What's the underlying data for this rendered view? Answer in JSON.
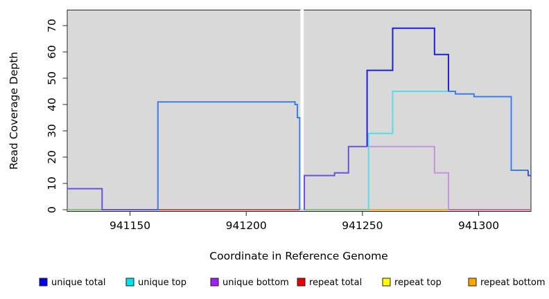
{
  "chart_data": {
    "type": "step-line",
    "title": "",
    "xlabel": "Coordinate in Reference Genome",
    "ylabel": "Read Coverage Depth",
    "xlim": [
      941123,
      941322.5
    ],
    "ylim": [
      0,
      76
    ],
    "x_ticks": [
      941150,
      941200,
      941250,
      941300
    ],
    "y_ticks": [
      0,
      10,
      20,
      30,
      40,
      50,
      60,
      70
    ],
    "grid": "off",
    "plot_bg": "#d9d9d9",
    "gap_region": {
      "from": 941223.3,
      "to": 941224.75,
      "color": "#ffffff"
    },
    "legend_position": "bottom",
    "legend": [
      {
        "label": "unique total",
        "color": "#0000e8"
      },
      {
        "label": "unique top",
        "color": "#00e0ee"
      },
      {
        "label": "unique bottom",
        "color": "#a020f0"
      },
      {
        "label": "repeat total",
        "color": "#ee0000"
      },
      {
        "label": "repeat top",
        "color": "#ffff00"
      },
      {
        "label": "repeat bottom",
        "color": "#ffa500"
      }
    ],
    "series": [
      {
        "name": "unique total",
        "steps": [
          [
            941123,
            8
          ],
          [
            941138,
            0
          ],
          [
            941162,
            41
          ],
          [
            941221,
            40
          ],
          [
            941222,
            35
          ],
          [
            941223,
            0
          ],
          [
            941225,
            13
          ],
          [
            941238,
            14
          ],
          [
            941244,
            24
          ],
          [
            941252,
            53
          ],
          [
            941263,
            69
          ],
          [
            941281,
            59
          ],
          [
            941287,
            45
          ],
          [
            941290,
            44
          ],
          [
            941298,
            43
          ],
          [
            941314,
            15
          ],
          [
            941321,
            13
          ],
          [
            941322,
            13
          ]
        ]
      },
      {
        "name": "unique top",
        "steps": [
          [
            941123,
            0
          ],
          [
            941162,
            41
          ],
          [
            941221,
            40
          ],
          [
            941222,
            35
          ],
          [
            941223,
            0
          ],
          [
            941252,
            29
          ],
          [
            941263,
            45
          ],
          [
            941290,
            44
          ],
          [
            941298,
            43
          ],
          [
            941314,
            15
          ],
          [
            941321,
            13
          ],
          [
            941322,
            13
          ]
        ]
      },
      {
        "name": "unique bottom",
        "steps": [
          [
            941123,
            8
          ],
          [
            941138,
            0
          ],
          [
            941225,
            13
          ],
          [
            941238,
            14
          ],
          [
            941244,
            24
          ],
          [
            941281,
            14
          ],
          [
            941287,
            0
          ],
          [
            941322,
            0
          ]
        ]
      },
      {
        "name": "repeat total",
        "steps": [
          [
            941123,
            0
          ],
          [
            941322,
            0
          ]
        ]
      },
      {
        "name": "repeat top",
        "steps": [
          [
            941123,
            0
          ],
          [
            941322,
            0
          ]
        ]
      },
      {
        "name": "repeat bottom",
        "steps": [
          [
            941123,
            0
          ],
          [
            941322,
            0
          ]
        ]
      }
    ],
    "rendered_segments": [
      {
        "name": "baseline-green-left",
        "color": "#7ec87e",
        "points": [
          [
            941123,
            0
          ],
          [
            941138,
            0
          ]
        ]
      },
      {
        "name": "baseline-crimson",
        "color": "#d24a52",
        "points": [
          [
            941162,
            0
          ],
          [
            941223,
            0
          ]
        ]
      },
      {
        "name": "baseline-green-right",
        "color": "#7ec87e",
        "points": [
          [
            941224.8,
            0
          ],
          [
            941252,
            0
          ]
        ]
      },
      {
        "name": "baseline-orange",
        "color": "#ffa513",
        "points": [
          [
            941252,
            0
          ],
          [
            941287,
            0
          ]
        ]
      },
      {
        "name": "baseline-rose",
        "color": "#df6397",
        "points": [
          [
            941287,
            0
          ],
          [
            941322.5,
            0
          ]
        ]
      },
      {
        "name": "cyan-top-line",
        "color": "#4fdfe8",
        "points": [
          [
            941252.6,
            0
          ],
          [
            941252.6,
            29
          ],
          [
            941263,
            29
          ],
          [
            941263,
            45
          ],
          [
            941287,
            45
          ]
        ]
      },
      {
        "name": "lightpurple-bottom-line",
        "color": "#c893dd",
        "points": [
          [
            941252,
            24
          ],
          [
            941281,
            24
          ],
          [
            941281,
            14
          ],
          [
            941287,
            14
          ],
          [
            941287,
            0
          ]
        ]
      },
      {
        "name": "darkblue-total-line",
        "color": "#1f1fd4",
        "points": [
          [
            941252,
            24
          ],
          [
            941252,
            53
          ],
          [
            941263,
            53
          ],
          [
            941263,
            69
          ],
          [
            941281,
            69
          ],
          [
            941281,
            59
          ],
          [
            941287,
            59
          ],
          [
            941287,
            45
          ]
        ]
      },
      {
        "name": "cornflower-plateau",
        "color": "#3d7de9",
        "points": [
          [
            941162,
            0
          ],
          [
            941162,
            41
          ],
          [
            941221,
            41
          ],
          [
            941221,
            40
          ],
          [
            941222,
            40
          ],
          [
            941222,
            35
          ],
          [
            941223,
            35
          ],
          [
            941223,
            0
          ]
        ]
      },
      {
        "name": "cornflower-right",
        "color": "#3d7de9",
        "points": [
          [
            941287,
            45
          ],
          [
            941290,
            45
          ],
          [
            941290,
            44
          ],
          [
            941298,
            44
          ],
          [
            941298,
            43
          ],
          [
            941314,
            43
          ],
          [
            941314,
            15
          ],
          [
            941321.3,
            15
          ]
        ]
      },
      {
        "name": "end-notch",
        "color": "#3a55e0",
        "points": [
          [
            941321.3,
            15
          ],
          [
            941321.3,
            13
          ],
          [
            941322.5,
            13
          ]
        ]
      },
      {
        "name": "violet-left",
        "color": "#6b51da",
        "points": [
          [
            941123,
            8
          ],
          [
            941138,
            8
          ],
          [
            941138,
            0
          ],
          [
            941162,
            0
          ]
        ]
      },
      {
        "name": "violet-right",
        "color": "#6b51da",
        "points": [
          [
            941225,
            0
          ],
          [
            941225,
            13
          ],
          [
            941238,
            13
          ],
          [
            941238,
            14
          ],
          [
            941244,
            14
          ],
          [
            941244,
            24
          ],
          [
            941252,
            24
          ]
        ]
      }
    ]
  }
}
